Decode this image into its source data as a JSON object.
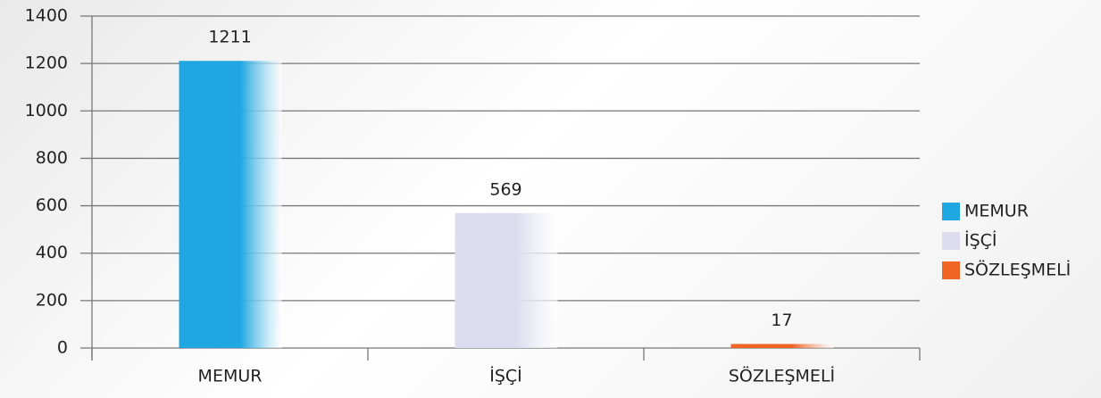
{
  "chart_data": {
    "type": "bar",
    "categories": [
      "MEMUR",
      "İŞÇİ",
      "SÖZLEŞMELİ"
    ],
    "values": [
      1211,
      569,
      17
    ],
    "colors": [
      "#1ea7e1",
      "#dcdcee",
      "#f06424"
    ],
    "ylim": [
      0,
      1400
    ],
    "yticks": [
      0,
      200,
      400,
      600,
      800,
      1000,
      1200,
      1400
    ],
    "grid": true,
    "legend": "right"
  }
}
